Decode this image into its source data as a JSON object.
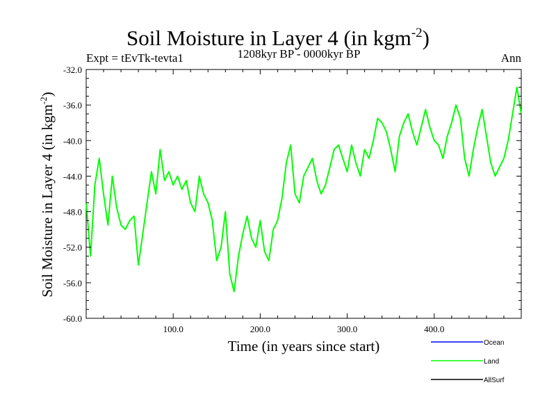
{
  "chart_data": {
    "type": "line",
    "title": "Soil Moisture in Layer 4 (in kgm",
    "title_sup": "-2",
    "title_close": ")",
    "expt_label": "Expt = tEvTk-tevta1",
    "period_label": "1208kyr BP - 0000kyr BP",
    "season_label": "Ann",
    "xlabel": "Time (in years since start)",
    "ylabel": "Soil Moisture in Layer 4 (in kgm",
    "ylabel_sup": "-2",
    "ylabel_close": ")",
    "xlim": [
      0,
      500
    ],
    "ylim": [
      -60,
      -32
    ],
    "grid": false,
    "x_ticks": [
      100,
      200,
      300,
      400
    ],
    "x_tick_labels": [
      "100.0",
      "200.0",
      "300.0",
      "400.0"
    ],
    "y_ticks": [
      -32,
      -36,
      -40,
      -44,
      -48,
      -52,
      -56,
      -60
    ],
    "y_tick_labels": [
      "-32.0",
      "-36.0",
      "-40.0",
      "-44.0",
      "-48.0",
      "-52.0",
      "-56.0",
      "-60.0"
    ],
    "legend_position": "bottom-right",
    "series": [
      {
        "name": "Ocean",
        "color": "#0000ff",
        "x": [],
        "y": []
      },
      {
        "name": "Land",
        "color": "#00ff00",
        "x_start": 0,
        "x_step": 5,
        "y": [
          -47.0,
          -53.0,
          -45.0,
          -42.0,
          -46.0,
          -49.5,
          -44.0,
          -47.5,
          -49.5,
          -50.0,
          -49.0,
          -48.5,
          -54.0,
          -50.5,
          -47.0,
          -43.5,
          -46.0,
          -41.0,
          -44.5,
          -43.5,
          -45.0,
          -44.0,
          -45.5,
          -44.5,
          -47.0,
          -48.0,
          -44.0,
          -46.0,
          -47.0,
          -49.0,
          -53.5,
          -52.0,
          -48.0,
          -55.0,
          -57.0,
          -53.0,
          -50.5,
          -48.5,
          -51.0,
          -52.0,
          -49.0,
          -52.5,
          -53.5,
          -50.0,
          -49.0,
          -46.5,
          -42.5,
          -40.5,
          -46.0,
          -47.0,
          -44.0,
          -43.0,
          -42.0,
          -44.5,
          -46.0,
          -45.0,
          -43.0,
          -41.0,
          -40.5,
          -42.0,
          -43.5,
          -40.5,
          -42.5,
          -44.0,
          -41.0,
          -42.0,
          -40.0,
          -37.5,
          -38.0,
          -39.0,
          -41.0,
          -43.5,
          -39.5,
          -38.0,
          -37.0,
          -39.0,
          -40.5,
          -38.5,
          -36.5,
          -38.5,
          -40.0,
          -40.5,
          -42.0,
          -39.5,
          -38.0,
          -36.0,
          -37.5,
          -42.0,
          -44.0,
          -41.0,
          -38.5,
          -36.5,
          -39.5,
          -42.5,
          -44.0,
          -43.0,
          -42.0,
          -40.0,
          -37.0,
          -34.0,
          -37.0
        ]
      },
      {
        "name": "AllSurf",
        "color": "#000000",
        "x": [],
        "y": []
      }
    ]
  }
}
